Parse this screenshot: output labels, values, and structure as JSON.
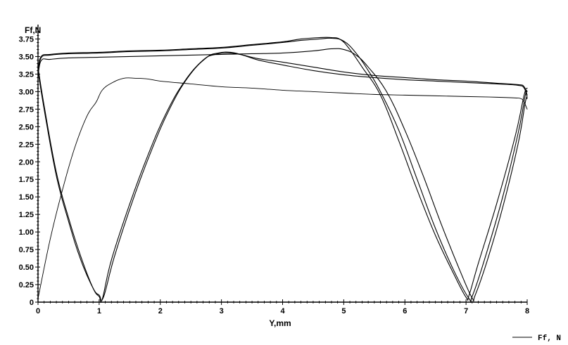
{
  "chart_data": {
    "type": "line",
    "ylabel": "Ff,N",
    "xlabel": "Y,mm",
    "xlim": [
      0,
      8
    ],
    "ylim": [
      0,
      3.875
    ],
    "x_ticks": [
      "0",
      "1",
      "2",
      "3",
      "4",
      "5",
      "6",
      "7",
      "8"
    ],
    "y_ticks": [
      "0",
      "0.25",
      "0.50",
      "0.75",
      "1.00",
      "1.25",
      "1.50",
      "1.75",
      "2.00",
      "2.25",
      "2.50",
      "2.75",
      "3.00",
      "3.25",
      "3.50",
      "3.75"
    ],
    "grid": false,
    "legend": {
      "position": "bottom-right",
      "entries": [
        "Ff, N"
      ]
    },
    "series": [
      {
        "x": [
          0,
          0.05,
          0.2,
          0.5,
          1.0,
          1.5,
          2.0,
          2.5,
          3.0,
          3.5,
          4.0,
          4.3,
          4.6,
          4.8,
          4.95,
          5.1,
          5.3,
          5.6,
          5.9,
          6.2,
          6.5,
          6.8,
          7.0,
          7.05,
          7.2,
          7.5,
          7.8,
          7.95,
          8.0
        ],
        "y": [
          3.3,
          3.5,
          3.53,
          3.55,
          3.56,
          3.58,
          3.59,
          3.61,
          3.63,
          3.67,
          3.71,
          3.75,
          3.77,
          3.77,
          3.74,
          3.6,
          3.35,
          2.95,
          2.3,
          1.6,
          0.95,
          0.4,
          0.07,
          0.1,
          0.55,
          1.4,
          2.35,
          2.95,
          3.05
        ]
      },
      {
        "x": [
          0,
          0.05,
          0.2,
          0.5,
          1.0,
          1.5,
          2.0,
          2.5,
          3.0,
          3.5,
          4.0,
          4.3,
          4.6,
          4.8,
          5.0,
          5.2,
          5.4,
          5.6,
          5.9,
          6.2,
          6.5,
          6.8,
          7.05,
          7.1,
          7.3,
          7.6,
          7.85,
          7.97,
          8.0
        ],
        "y": [
          3.25,
          3.48,
          3.52,
          3.54,
          3.55,
          3.57,
          3.58,
          3.6,
          3.62,
          3.66,
          3.7,
          3.73,
          3.75,
          3.76,
          3.72,
          3.55,
          3.3,
          3.0,
          2.45,
          1.75,
          1.05,
          0.45,
          0.05,
          0.08,
          0.6,
          1.5,
          2.4,
          2.95,
          3.0
        ]
      },
      {
        "x": [
          0,
          0.05,
          0.2,
          0.5,
          1.0,
          1.5,
          2.0,
          2.5,
          3.0,
          3.5,
          4.0,
          4.5,
          4.8,
          5.0,
          5.2,
          5.4,
          5.7,
          6.0,
          6.3,
          6.6,
          6.9,
          7.1,
          7.15,
          7.35,
          7.6,
          7.85,
          7.97,
          8.0
        ],
        "y": [
          3.2,
          3.44,
          3.46,
          3.48,
          3.49,
          3.5,
          3.51,
          3.52,
          3.53,
          3.54,
          3.55,
          3.58,
          3.61,
          3.6,
          3.52,
          3.35,
          3.0,
          2.45,
          1.8,
          1.1,
          0.45,
          0.06,
          0.1,
          0.6,
          1.35,
          2.25,
          2.85,
          2.9
        ]
      },
      {
        "x": [
          0,
          0.2,
          0.4,
          0.6,
          0.8,
          0.95,
          1.05,
          1.2,
          1.4,
          1.6,
          1.8,
          2.0,
          2.5,
          3.0,
          3.5,
          4.0,
          4.5,
          5.0,
          5.5,
          6.0,
          6.5,
          7.0,
          7.5,
          7.8,
          7.9,
          7.95,
          8.0
        ],
        "y": [
          0.05,
          0.9,
          1.6,
          2.2,
          2.65,
          2.85,
          3.02,
          3.12,
          3.19,
          3.19,
          3.18,
          3.15,
          3.11,
          3.07,
          3.05,
          3.02,
          3.0,
          2.98,
          2.96,
          2.95,
          2.94,
          2.93,
          2.92,
          2.91,
          2.9,
          2.85,
          2.75
        ]
      },
      {
        "x": [
          0,
          0.1,
          0.3,
          0.5,
          0.7,
          0.9,
          1.0,
          1.05,
          1.2,
          1.5,
          1.8,
          2.1,
          2.4,
          2.7,
          2.9,
          3.1,
          3.3,
          3.6,
          4.0,
          4.5,
          5.0,
          5.5,
          6.0,
          6.5,
          7.0,
          7.5,
          7.85,
          7.95,
          8.0
        ],
        "y": [
          3.35,
          2.8,
          1.85,
          1.2,
          0.65,
          0.2,
          0.08,
          0.04,
          0.6,
          1.4,
          2.1,
          2.7,
          3.15,
          3.45,
          3.53,
          3.55,
          3.53,
          3.47,
          3.42,
          3.35,
          3.28,
          3.23,
          3.2,
          3.17,
          3.15,
          3.12,
          3.1,
          3.07,
          2.95
        ]
      },
      {
        "x": [
          0,
          0.1,
          0.3,
          0.5,
          0.7,
          0.9,
          1.0,
          1.07,
          1.25,
          1.55,
          1.85,
          2.15,
          2.45,
          2.75,
          2.95,
          3.15,
          3.35,
          3.6,
          4.0,
          4.5,
          5.0,
          5.5,
          6.0,
          6.5,
          7.0,
          7.5,
          7.85,
          7.95,
          8.0
        ],
        "y": [
          3.3,
          2.75,
          1.8,
          1.15,
          0.6,
          0.2,
          0.1,
          0.07,
          0.65,
          1.45,
          2.15,
          2.75,
          3.2,
          3.48,
          3.55,
          3.56,
          3.52,
          3.45,
          3.38,
          3.3,
          3.24,
          3.2,
          3.17,
          3.15,
          3.13,
          3.11,
          3.09,
          3.05,
          2.92
        ]
      }
    ]
  },
  "legend_label": "Ff, N"
}
